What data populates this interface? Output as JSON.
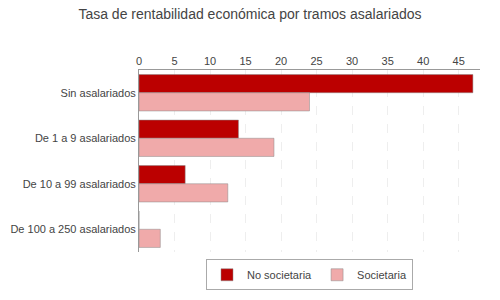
{
  "chart_data": {
    "type": "bar",
    "orientation": "horizontal",
    "title": "Tasa de rentabilidad económica por tramos asalariados",
    "categories": [
      "Sin asalariados",
      "De 1 a 9 asalariados",
      "De 10 a 99 asalariados",
      "De 100 a 250 asalariados"
    ],
    "series": [
      {
        "name": "No societaria",
        "color": "#bb0000",
        "values": [
          47,
          14,
          6.5,
          0
        ]
      },
      {
        "name": "Societaria",
        "color": "#f0aaaa",
        "values": [
          24,
          19,
          12.5,
          3
        ]
      }
    ],
    "xlim": [
      0,
      48
    ],
    "xticks": [
      0,
      5,
      10,
      15,
      20,
      25,
      30,
      35,
      40,
      45
    ],
    "grid": true,
    "legend": "bottom"
  }
}
